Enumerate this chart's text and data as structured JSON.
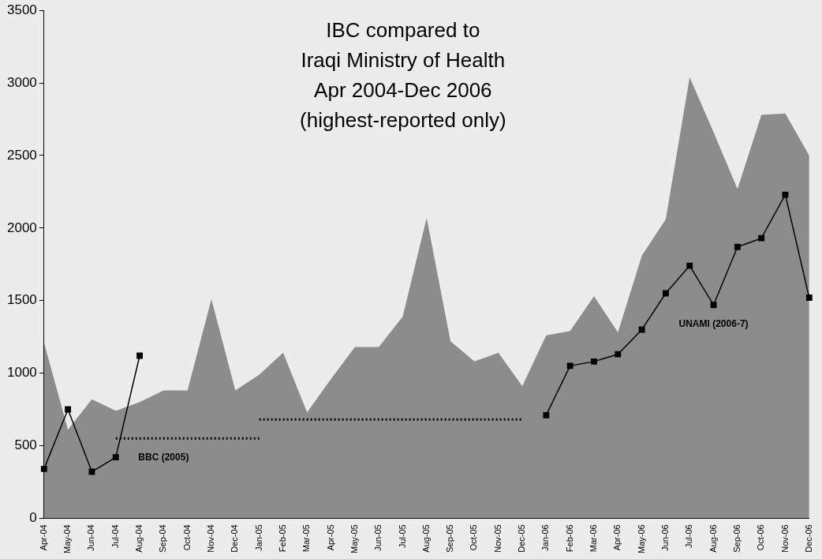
{
  "chart_data": {
    "type": "area",
    "title": "IBC compared to\nIraqi Ministry of Health\nApr 2004-Dec 2006\n(highest-reported only)",
    "categories": [
      "Apr-04",
      "May-04",
      "Jun-04",
      "Jul-04",
      "Aug-04",
      "Sep-04",
      "Oct-04",
      "Nov-04",
      "Dec-04",
      "Jan-05",
      "Feb-05",
      "Mar-05",
      "Apr-05",
      "May-05",
      "Jun-05",
      "Jul-05",
      "Aug-05",
      "Sep-05",
      "Oct-05",
      "Nov-05",
      "Dec-05",
      "Jan-06",
      "Feb-06",
      "Mar-06",
      "Apr-06",
      "May-06",
      "Jun-06",
      "Jul-06",
      "Aug-06",
      "Sep-06",
      "Oct-06",
      "Nov-06",
      "Dec-06"
    ],
    "series": [
      {
        "color": "#8c8c8c",
        "marker": "none",
        "values": [
          1210,
          610,
          820,
          740,
          800,
          880,
          880,
          1510,
          880,
          990,
          1140,
          730,
          960,
          1180,
          1180,
          1390,
          2070,
          1220,
          1080,
          1140,
          910,
          1260,
          1290,
          1530,
          1280,
          1810,
          2060,
          3040,
          2660,
          2270,
          2780,
          2790,
          2500
        ]
      },
      {
        "type": "line",
        "color": "#000000",
        "marker": "square",
        "line_style": "solid",
        "values": [
          340,
          750,
          320,
          420,
          1120,
          null,
          null,
          null,
          null,
          null,
          null,
          null,
          null,
          null,
          null,
          null,
          null,
          null,
          null,
          null,
          null,
          null,
          null,
          null,
          null,
          null,
          null,
          null,
          null,
          null,
          null,
          null,
          null
        ]
      },
      {
        "type": "line",
        "name": "BBC (2005)",
        "color": "#000000",
        "marker": "none",
        "line_style": "dotted",
        "values": [
          null,
          null,
          null,
          550,
          550,
          550,
          550,
          550,
          550,
          550,
          null,
          null,
          null,
          null,
          null,
          null,
          null,
          null,
          null,
          null,
          null,
          null,
          null,
          null,
          null,
          null,
          null,
          null,
          null,
          null,
          null,
          null,
          null
        ]
      },
      {
        "type": "line",
        "color": "#000000",
        "marker": "none",
        "line_style": "dotted",
        "values": [
          null,
          null,
          null,
          null,
          null,
          null,
          null,
          null,
          null,
          680,
          680,
          680,
          680,
          680,
          680,
          680,
          680,
          680,
          680,
          680,
          680,
          null,
          null,
          null,
          null,
          null,
          null,
          null,
          null,
          null,
          null,
          null,
          null
        ]
      },
      {
        "type": "line",
        "name": "UNAMI (2006-7)",
        "color": "#000000",
        "marker": "square",
        "line_style": "solid",
        "values": [
          null,
          null,
          null,
          null,
          null,
          null,
          null,
          null,
          null,
          null,
          null,
          null,
          null,
          null,
          null,
          null,
          null,
          null,
          null,
          null,
          null,
          710,
          1050,
          1080,
          1130,
          1300,
          1550,
          1740,
          1470,
          1870,
          1930,
          2230,
          1520
        ]
      }
    ],
    "ylim": [
      0,
      3500
    ],
    "yticks": [
      0,
      500,
      1000,
      1500,
      2000,
      2500,
      3000,
      3500
    ],
    "grid": false,
    "legend": false
  }
}
